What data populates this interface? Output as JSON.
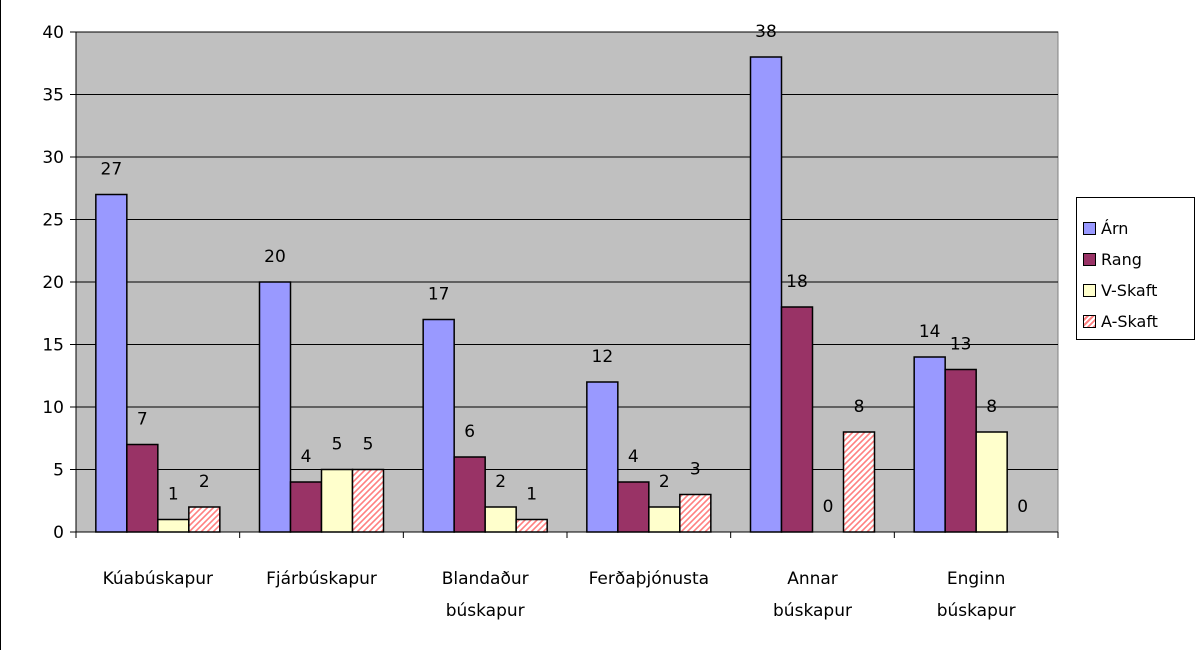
{
  "chart_data": {
    "type": "bar",
    "title": "",
    "xlabel": "",
    "ylabel": "",
    "ylim": [
      0,
      40
    ],
    "yticks": [
      0,
      5,
      10,
      15,
      20,
      25,
      30,
      35,
      40
    ],
    "grid": true,
    "legend_position": "right",
    "categories": [
      [
        "Kúabúskapur"
      ],
      [
        "Fjárbúskapur"
      ],
      [
        "Blandaður",
        "búskapur"
      ],
      [
        "Ferðaþjónusta"
      ],
      [
        "Annar",
        "búskapur"
      ],
      [
        "Enginn",
        "búskapur"
      ]
    ],
    "series": [
      {
        "name": "Árn",
        "color": "#9999ff",
        "pattern": "solid",
        "values": [
          27,
          20,
          17,
          12,
          38,
          14
        ]
      },
      {
        "name": "Rang",
        "color": "#993366",
        "pattern": "solid",
        "values": [
          7,
          4,
          6,
          4,
          18,
          13
        ]
      },
      {
        "name": "V-Skaft",
        "color": "#ffffcc",
        "pattern": "solid",
        "values": [
          1,
          5,
          2,
          2,
          0,
          8
        ]
      },
      {
        "name": "A-Skaft",
        "color": "#ff8080",
        "pattern": "diagonal-stripes",
        "values": [
          2,
          5,
          1,
          3,
          8,
          0
        ]
      }
    ],
    "plot_background": "#c0c0c0"
  }
}
